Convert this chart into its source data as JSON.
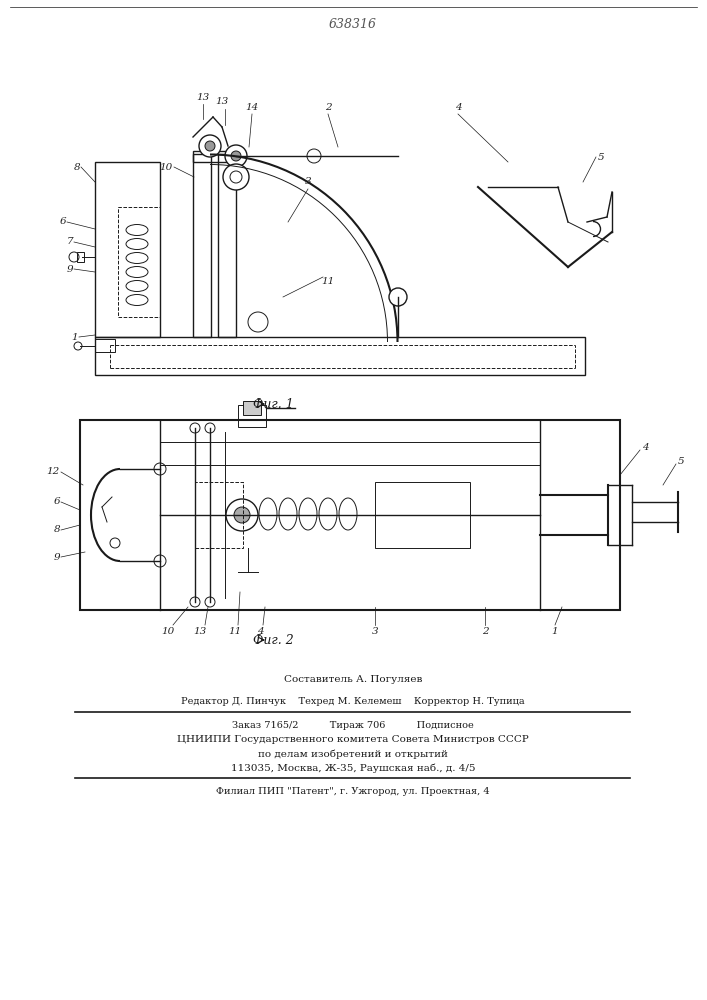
{
  "patent_number": "638316",
  "bg_color": "#ffffff",
  "line_color": "#1a1a1a",
  "fig1_caption": "Фиг. 1",
  "fig2_caption": "Фиг. 2",
  "composer_line": "Составитель А. Погуляев",
  "editor_line": "Редактор Д. Пинчук    Техред М. Келемеш    Корректор Н. Тупица",
  "order_line": "Заказ 7165/2          Тираж 706          Подписное",
  "org_line1": "ЦНИИПИ Государственного комитета Совета Министров СССР",
  "org_line2": "по делам изобретений и открытий",
  "org_line3": "113035, Москва, Ж-35, Раушская наб., д. 4/5",
  "branch_line": "Филиал ПИП \"Патент\", г. Ужгород, ул. Проектная, 4"
}
